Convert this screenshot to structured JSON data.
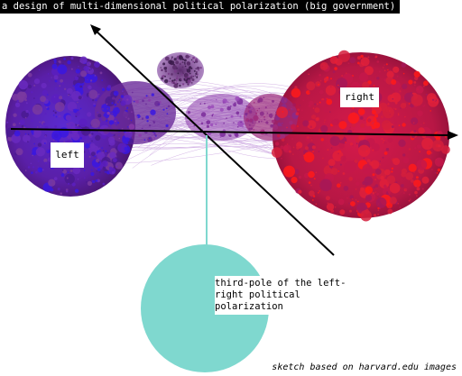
{
  "title": "a design of multi-dimensional political polarization (big government)",
  "labels": {
    "right": "right",
    "left": "left",
    "third_pole": "third-pole of the left-right political polarization"
  },
  "credit": "sketch based on harvard.edu images",
  "colors": {
    "left_cluster": "#5a1fbf",
    "left_node": "#3a18e0",
    "right_cluster": "#c4174a",
    "right_node": "#ff1a1a",
    "center_cluster": "#7a2a9a",
    "edges": "#b077d0",
    "third_pole": "#7fd8cf",
    "axis": "#000000"
  }
}
